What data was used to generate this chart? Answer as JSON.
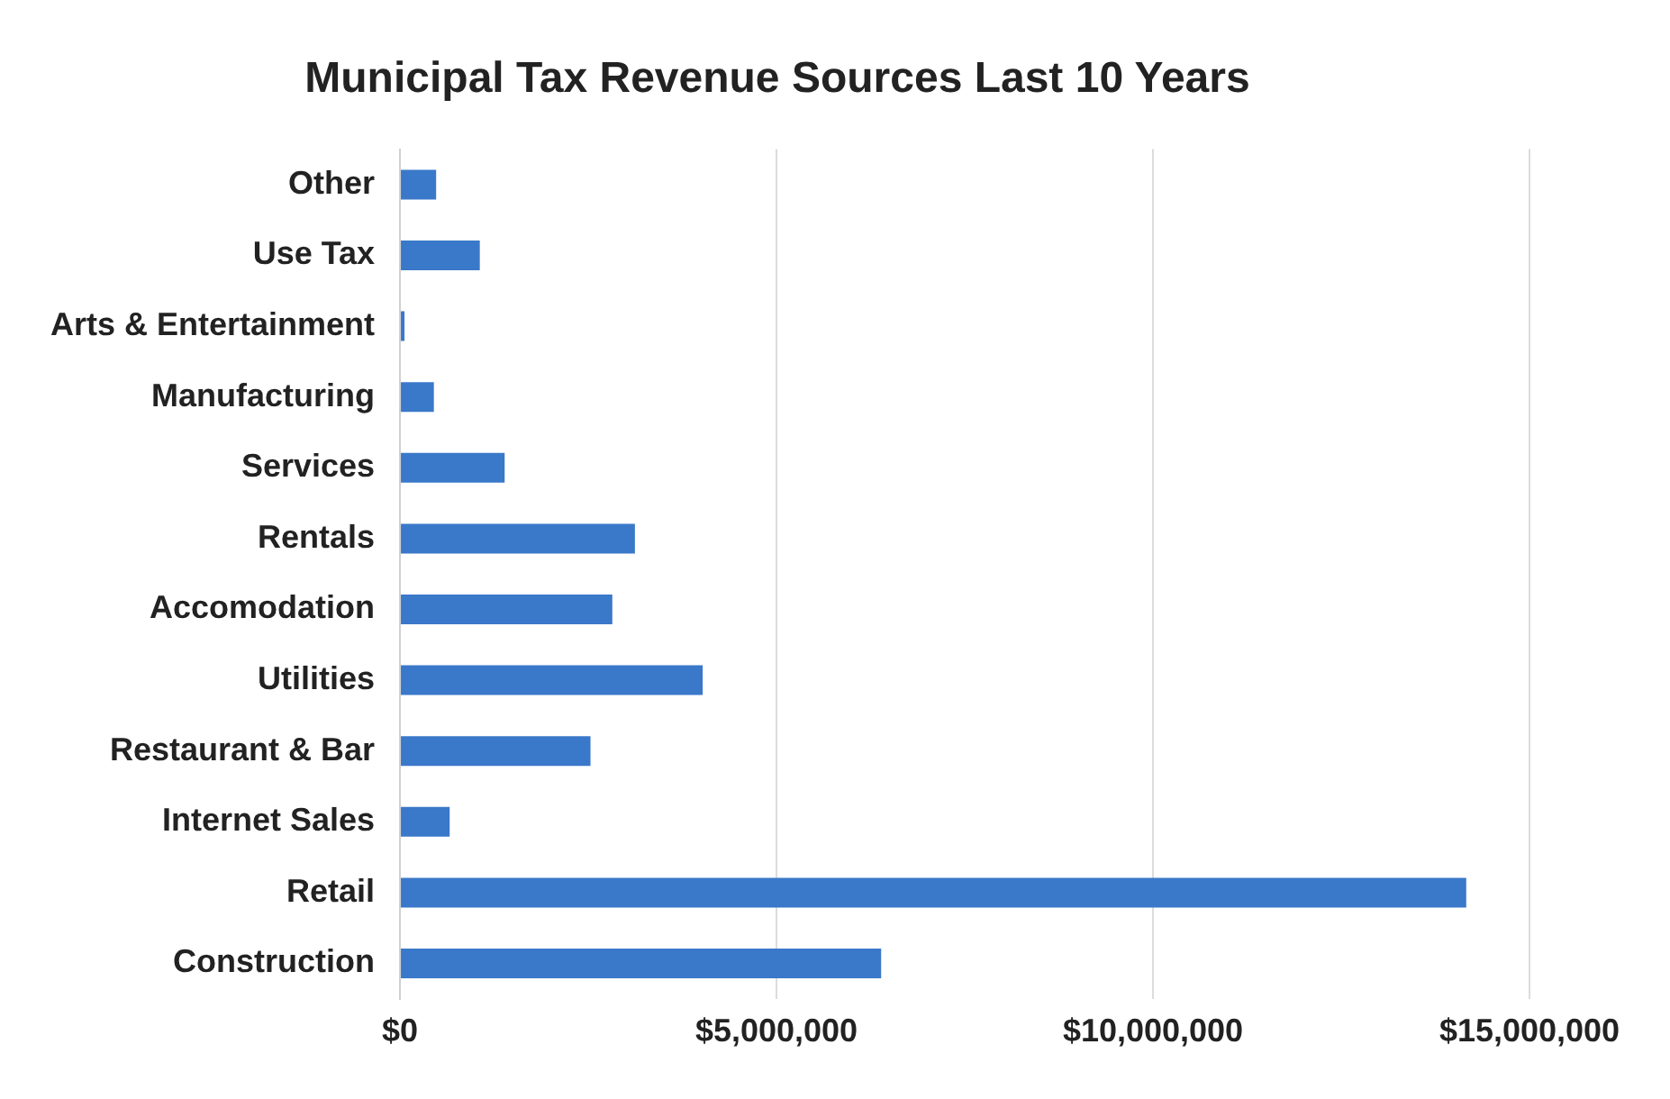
{
  "chart_data": {
    "type": "bar",
    "orientation": "horizontal",
    "title": "Municipal Tax Revenue Sources Last 10 Years",
    "categories": [
      "Other",
      "Use Tax",
      "Arts & Entertainment",
      "Manufacturing",
      "Services",
      "Rentals",
      "Accomodation",
      "Utilities",
      "Restaurant & Bar",
      "Internet Sales",
      "Retail",
      "Construction"
    ],
    "values": [
      480000,
      1060000,
      60000,
      450000,
      1390000,
      3120000,
      2820000,
      4020000,
      2530000,
      660000,
      14160000,
      6390000
    ],
    "color": "#3a78c9",
    "xlim": [
      0,
      15000000
    ],
    "xticks": [
      {
        "value": 0,
        "label": "$0"
      },
      {
        "value": 5000000,
        "label": "$5,000,000"
      },
      {
        "value": 10000000,
        "label": "$10,000,000"
      },
      {
        "value": 15000000,
        "label": "$15,000,000"
      }
    ],
    "grid": "x",
    "legend": false
  }
}
